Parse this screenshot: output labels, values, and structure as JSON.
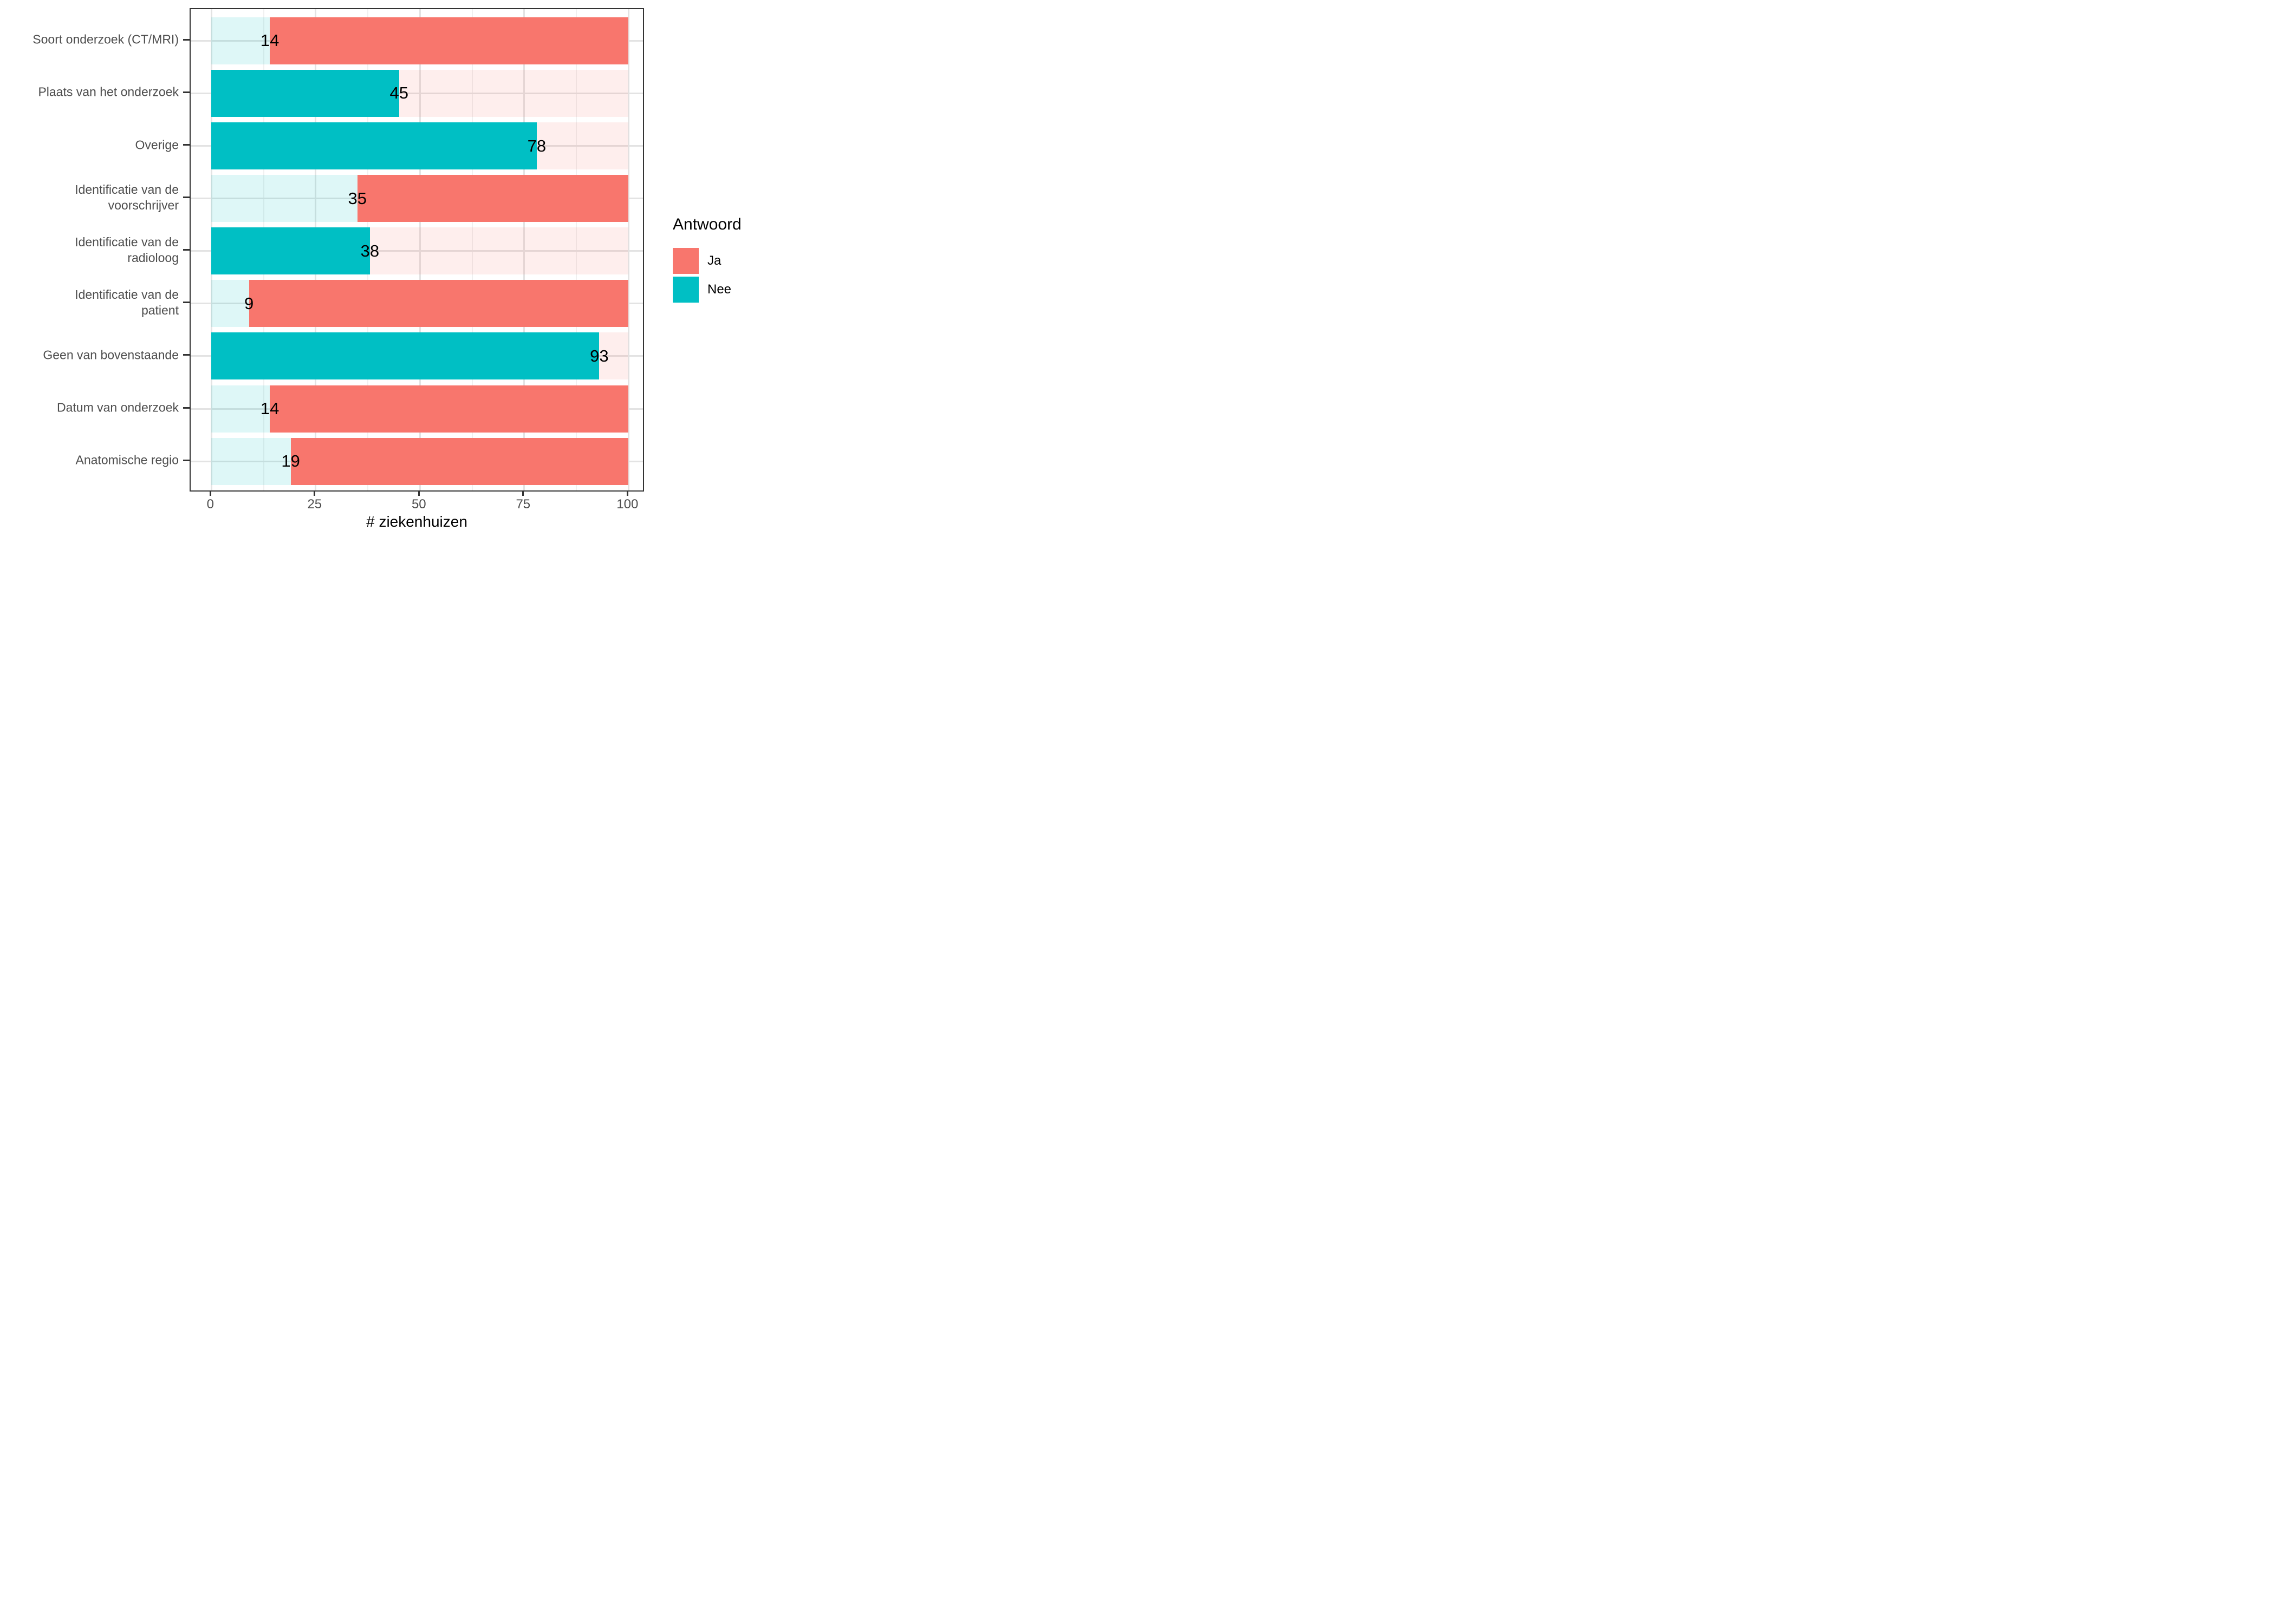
{
  "chart_data": {
    "type": "bar",
    "orientation": "horizontal",
    "stacked": true,
    "title": "",
    "xlabel": "# ziekenhuizen",
    "ylabel": "",
    "xlim": [
      0,
      100
    ],
    "x_ticks": [
      0,
      25,
      50,
      75,
      100
    ],
    "x_minor_gridlines": [
      12.5,
      37.5,
      62.5,
      87.5
    ],
    "grid": true,
    "legend": {
      "title": "Antwoord",
      "position": "right",
      "entries": [
        {
          "label": "Ja",
          "color": "#F8766D"
        },
        {
          "label": "Nee",
          "color": "#00BFC4"
        }
      ]
    },
    "categories": [
      "Soort onderzoek (CT/MRI)",
      "Plaats van het onderzoek",
      "Overige",
      "Identificatie van de voorschrijver",
      "Identificatie van de radioloog",
      "Identificatie van de patient",
      "Geen van bovenstaande",
      "Datum van onderzoek",
      "Anatomische regio"
    ],
    "category_label_lines": [
      [
        "Soort onderzoek (CT/MRI)"
      ],
      [
        "Plaats van het onderzoek"
      ],
      [
        "Overige"
      ],
      [
        "Identificatie van de",
        "voorschrijver"
      ],
      [
        "Identificatie van de",
        "radioloog"
      ],
      [
        "Identificatie van de",
        "patient"
      ],
      [
        "Geen van bovenstaande"
      ],
      [
        "Datum van onderzoek"
      ],
      [
        "Anatomische regio"
      ]
    ],
    "series": [
      {
        "name": "Nee",
        "values": [
          14,
          45,
          78,
          35,
          38,
          9,
          93,
          14,
          19
        ]
      },
      {
        "name": "Ja",
        "values": [
          86,
          55,
          22,
          65,
          62,
          91,
          7,
          86,
          81
        ]
      }
    ],
    "bar_value_labels": [
      14,
      45,
      78,
      35,
      38,
      9,
      93,
      14,
      19
    ],
    "solid_series_per_row": [
      "Ja",
      "Nee",
      "Nee",
      "Ja",
      "Nee",
      "Ja",
      "Nee",
      "Ja",
      "Ja"
    ],
    "colors": {
      "ja_solid": "#F8766D",
      "nee_solid": "#00BFC4",
      "ja_faded": "rgba(248,118,109,0.12)",
      "nee_faded": "rgba(0,191,196,0.13)",
      "gridline_major": "#E3E3E3",
      "gridline_minor": "#F0F0F0",
      "panel_border": "#333333",
      "axis_text": "#4D4D4D",
      "tick": "#333333",
      "bar_label_text": "#000000"
    }
  }
}
